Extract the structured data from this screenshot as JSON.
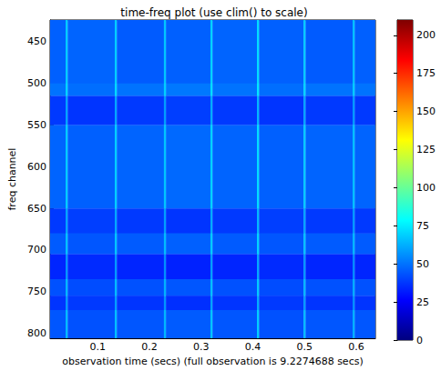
{
  "chart_data": {
    "type": "heatmap",
    "title": "time-freq plot (use clim() to scale)",
    "x_label": "observation time (secs) (full observation is 9.2274688 secs)",
    "y_label": "freq channel",
    "xlim": [
      0.008,
      0.637
    ],
    "xticks": [
      0.1,
      0.2,
      0.3,
      0.4,
      0.5,
      0.6
    ],
    "ylim": [
      424,
      806
    ],
    "yticks": [
      450,
      500,
      550,
      600,
      650,
      700,
      750,
      800
    ],
    "x_edges": [
      0.008,
      0.038,
      0.042,
      0.133,
      0.137,
      0.228,
      0.232,
      0.318,
      0.322,
      0.408,
      0.412,
      0.498,
      0.502,
      0.593,
      0.597,
      0.637
    ],
    "y_edges": [
      424,
      500,
      515,
      550,
      650,
      680,
      705,
      735,
      755,
      772,
      806
    ],
    "values": [
      [
        46,
        68,
        47,
        69,
        45,
        67,
        46,
        70,
        47,
        72,
        46,
        68,
        45,
        66,
        46
      ],
      [
        50,
        70,
        49,
        71,
        50,
        69,
        51,
        72,
        50,
        74,
        49,
        70,
        50,
        68,
        50
      ],
      [
        38,
        60,
        37,
        61,
        38,
        59,
        39,
        62,
        38,
        64,
        37,
        60,
        38,
        58,
        38
      ],
      [
        47,
        68,
        46,
        69,
        47,
        67,
        48,
        70,
        47,
        72,
        46,
        68,
        47,
        66,
        47
      ],
      [
        38,
        60,
        39,
        61,
        38,
        59,
        37,
        62,
        38,
        64,
        39,
        60,
        38,
        58,
        38
      ],
      [
        45,
        66,
        44,
        67,
        45,
        65,
        46,
        68,
        45,
        70,
        44,
        66,
        45,
        64,
        45
      ],
      [
        34,
        57,
        35,
        58,
        34,
        56,
        33,
        59,
        34,
        61,
        35,
        57,
        34,
        55,
        34
      ],
      [
        43,
        64,
        42,
        65,
        43,
        63,
        44,
        66,
        43,
        68,
        42,
        64,
        43,
        62,
        43
      ],
      [
        37,
        58,
        38,
        59,
        37,
        57,
        36,
        60,
        37,
        62,
        38,
        58,
        37,
        56,
        37
      ],
      [
        44,
        65,
        43,
        66,
        44,
        64,
        45,
        67,
        44,
        69,
        43,
        65,
        44,
        63,
        44
      ]
    ],
    "color_range": [
      0,
      210
    ],
    "color_ticks": [
      0,
      25,
      50,
      75,
      100,
      125,
      150,
      175,
      200
    ]
  }
}
